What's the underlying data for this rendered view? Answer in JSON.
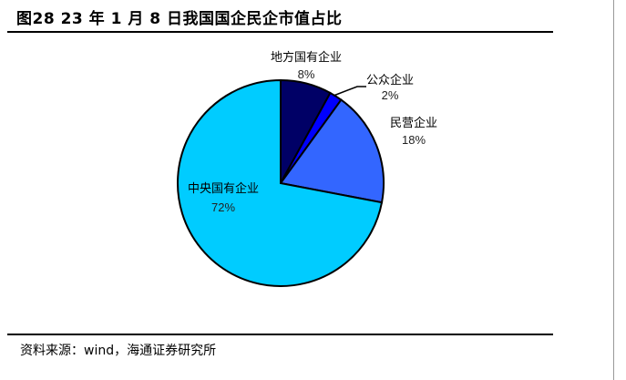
{
  "title": "图28 23 年 1 月 8 日我国国企民企市值占比",
  "source": "资料来源：wind，海通证券研究所",
  "chart_data": {
    "type": "pie",
    "title": "图28 23 年 1 月 8 日我国国企民企市值占比",
    "start": "12 o'clock, clockwise",
    "slices": [
      {
        "label": "地方国有企业",
        "value": 8,
        "value_label": "8%",
        "color": "#000066"
      },
      {
        "label": "公众企业",
        "value": 2,
        "value_label": "2%",
        "color": "#0000FF"
      },
      {
        "label": "民营企业",
        "value": 18,
        "value_label": "18%",
        "color": "#3366FF"
      },
      {
        "label": "中央国有企业",
        "value": 72,
        "value_label": "72%",
        "color": "#00CCFF"
      }
    ]
  }
}
